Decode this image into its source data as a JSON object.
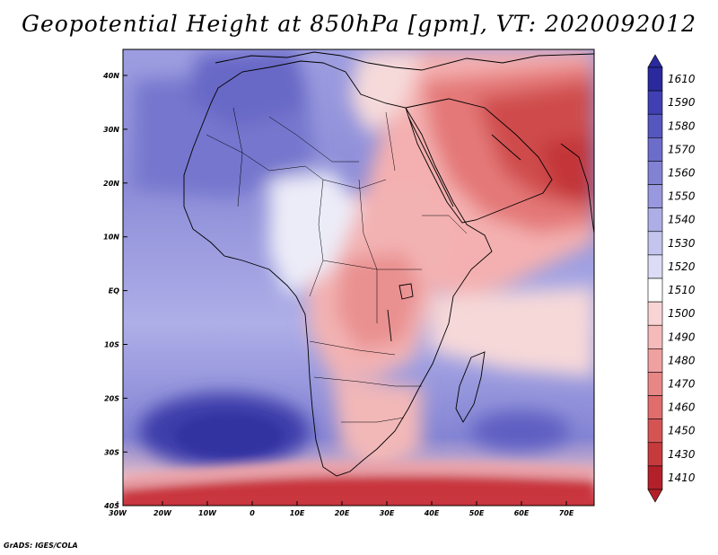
{
  "title": "Geopotential Height at 850hPa [gpm], VT: 2020092012",
  "credit": "GrADS: IGES/COLA",
  "axes": {
    "lon_ticks": [
      "30W",
      "20W",
      "10W",
      "0",
      "10E",
      "20E",
      "30E",
      "40E",
      "50E",
      "60E",
      "70E"
    ],
    "lat_ticks": [
      "40N",
      "30N",
      "20N",
      "10N",
      "EQ",
      "10S",
      "20S",
      "30S",
      "40S"
    ]
  },
  "colorbar": {
    "levels": [
      "1410",
      "1430",
      "1450",
      "1460",
      "1470",
      "1480",
      "1490",
      "1500",
      "1510",
      "1520",
      "1530",
      "1540",
      "1550",
      "1560",
      "1570",
      "1580",
      "1590",
      "1610"
    ],
    "colors": [
      "#b4202a",
      "#c63a3e",
      "#d45454",
      "#e06c6c",
      "#e88686",
      "#efa0a0",
      "#f5baba",
      "#f9d4d4",
      "#ffffff",
      "#dcdcf6",
      "#c4c4ee",
      "#aeaee6",
      "#9898de",
      "#8282d4",
      "#6c6cca",
      "#5656bf",
      "#4040b4",
      "#2a2a9e"
    ]
  },
  "colors": {
    "ocean_warm": "#f2a6a6",
    "ocean_cool": "#8a8ad8"
  }
}
